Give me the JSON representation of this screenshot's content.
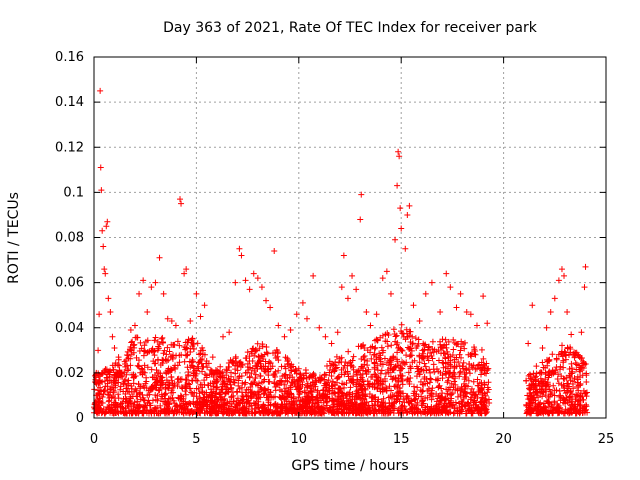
{
  "chart_data": {
    "type": "scatter",
    "title": "Day 363 of 2021, Rate Of TEC Index for receiver park",
    "xlabel": "GPS time / hours",
    "ylabel": "ROTI / TECUs",
    "xlim": [
      0,
      25
    ],
    "ylim": [
      0,
      0.16
    ],
    "xticks": [
      0,
      5,
      10,
      15,
      20,
      25
    ],
    "yticks": [
      0,
      0.02,
      0.04,
      0.06,
      0.08,
      0.1,
      0.12,
      0.14,
      0.16
    ],
    "xtick_labels": [
      "0",
      "5",
      "10",
      "15",
      "20",
      "25"
    ],
    "ytick_labels": [
      "0",
      "0.02",
      "0.04",
      "0.06",
      "0.08",
      "0.1",
      "0.12",
      "0.14",
      "0.16"
    ],
    "grid": true,
    "legend": false,
    "marker": "plus",
    "color": "#ff0000",
    "series": [
      {
        "points": [
          [
            0.1,
            0.018
          ],
          [
            0.2,
            0.03
          ],
          [
            0.25,
            0.046
          ],
          [
            0.3,
            0.145
          ],
          [
            0.33,
            0.111
          ],
          [
            0.36,
            0.101
          ],
          [
            0.4,
            0.083
          ],
          [
            0.45,
            0.076
          ],
          [
            0.5,
            0.066
          ],
          [
            0.55,
            0.064
          ],
          [
            0.6,
            0.085
          ],
          [
            0.65,
            0.087
          ],
          [
            0.7,
            0.053
          ],
          [
            0.8,
            0.047
          ],
          [
            0.9,
            0.036
          ],
          [
            1.0,
            0.031
          ],
          [
            1.2,
            0.027
          ],
          [
            1.5,
            0.025
          ],
          [
            1.8,
            0.039
          ],
          [
            2.0,
            0.041
          ],
          [
            2.2,
            0.055
          ],
          [
            2.4,
            0.061
          ],
          [
            2.6,
            0.047
          ],
          [
            2.8,
            0.058
          ],
          [
            3.0,
            0.06
          ],
          [
            3.2,
            0.071
          ],
          [
            3.4,
            0.055
          ],
          [
            3.6,
            0.044
          ],
          [
            3.8,
            0.043
          ],
          [
            4.0,
            0.041
          ],
          [
            4.2,
            0.097
          ],
          [
            4.25,
            0.095
          ],
          [
            4.4,
            0.064
          ],
          [
            4.5,
            0.066
          ],
          [
            4.7,
            0.043
          ],
          [
            5.0,
            0.055
          ],
          [
            5.2,
            0.045
          ],
          [
            5.4,
            0.05
          ],
          [
            5.8,
            0.027
          ],
          [
            6.3,
            0.036
          ],
          [
            6.6,
            0.038
          ],
          [
            6.9,
            0.06
          ],
          [
            7.1,
            0.075
          ],
          [
            7.2,
            0.072
          ],
          [
            7.4,
            0.061
          ],
          [
            7.6,
            0.057
          ],
          [
            7.8,
            0.064
          ],
          [
            8.0,
            0.062
          ],
          [
            8.2,
            0.058
          ],
          [
            8.4,
            0.052
          ],
          [
            8.6,
            0.049
          ],
          [
            8.8,
            0.074
          ],
          [
            9.0,
            0.041
          ],
          [
            9.3,
            0.036
          ],
          [
            9.6,
            0.039
          ],
          [
            9.9,
            0.046
          ],
          [
            10.2,
            0.051
          ],
          [
            10.4,
            0.044
          ],
          [
            10.7,
            0.063
          ],
          [
            11.0,
            0.04
          ],
          [
            11.3,
            0.036
          ],
          [
            11.6,
            0.033
          ],
          [
            11.9,
            0.038
          ],
          [
            12.1,
            0.058
          ],
          [
            12.2,
            0.072
          ],
          [
            12.4,
            0.053
          ],
          [
            12.6,
            0.063
          ],
          [
            12.8,
            0.057
          ],
          [
            13.0,
            0.088
          ],
          [
            13.05,
            0.099
          ],
          [
            13.3,
            0.047
          ],
          [
            13.5,
            0.041
          ],
          [
            13.8,
            0.046
          ],
          [
            14.1,
            0.062
          ],
          [
            14.3,
            0.065
          ],
          [
            14.5,
            0.055
          ],
          [
            14.7,
            0.079
          ],
          [
            14.8,
            0.103
          ],
          [
            14.85,
            0.118
          ],
          [
            14.9,
            0.116
          ],
          [
            14.95,
            0.093
          ],
          [
            15.0,
            0.084
          ],
          [
            15.2,
            0.075
          ],
          [
            15.3,
            0.09
          ],
          [
            15.4,
            0.094
          ],
          [
            15.6,
            0.05
          ],
          [
            15.9,
            0.043
          ],
          [
            16.2,
            0.055
          ],
          [
            16.5,
            0.06
          ],
          [
            16.9,
            0.047
          ],
          [
            17.2,
            0.064
          ],
          [
            17.4,
            0.058
          ],
          [
            17.7,
            0.049
          ],
          [
            17.9,
            0.055
          ],
          [
            18.2,
            0.047
          ],
          [
            18.4,
            0.046
          ],
          [
            18.7,
            0.041
          ],
          [
            19.0,
            0.054
          ],
          [
            19.2,
            0.042
          ],
          [
            21.2,
            0.033
          ],
          [
            21.4,
            0.05
          ],
          [
            21.6,
            0.023
          ],
          [
            21.9,
            0.031
          ],
          [
            22.1,
            0.04
          ],
          [
            22.3,
            0.047
          ],
          [
            22.5,
            0.053
          ],
          [
            22.7,
            0.061
          ],
          [
            22.85,
            0.066
          ],
          [
            22.95,
            0.063
          ],
          [
            23.1,
            0.047
          ],
          [
            23.3,
            0.037
          ],
          [
            23.5,
            0.028
          ],
          [
            23.8,
            0.038
          ],
          [
            23.95,
            0.058
          ],
          [
            24.0,
            0.067
          ]
        ]
      }
    ],
    "dense_band": {
      "x_ranges": [
        [
          0,
          19.3
        ],
        [
          21.1,
          24.1
        ]
      ],
      "y_min": 0.002,
      "y_typical_max": 0.03,
      "envelope": [
        [
          0,
          0.02
        ],
        [
          1,
          0.024
        ],
        [
          2,
          0.036
        ],
        [
          3,
          0.038
        ],
        [
          4,
          0.034
        ],
        [
          5,
          0.036
        ],
        [
          6,
          0.022
        ],
        [
          7,
          0.028
        ],
        [
          8,
          0.034
        ],
        [
          9,
          0.03
        ],
        [
          10,
          0.022
        ],
        [
          11,
          0.02
        ],
        [
          12,
          0.03
        ],
        [
          13,
          0.032
        ],
        [
          14,
          0.036
        ],
        [
          15,
          0.042
        ],
        [
          16,
          0.034
        ],
        [
          17,
          0.036
        ],
        [
          18,
          0.034
        ],
        [
          19,
          0.03
        ],
        [
          19.3,
          0.026
        ],
        [
          21.1,
          0.018
        ],
        [
          22,
          0.026
        ],
        [
          23,
          0.034
        ],
        [
          24,
          0.026
        ],
        [
          24.1,
          0.02
        ]
      ]
    }
  }
}
